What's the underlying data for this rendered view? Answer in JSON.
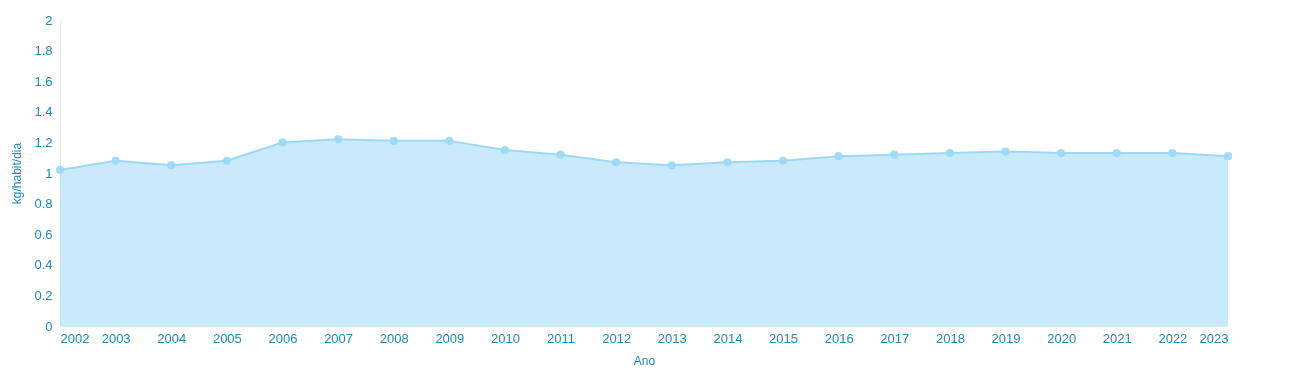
{
  "chart_data": {
    "type": "area",
    "xlabel": "Ano",
    "ylabel": "kg/habit/dia",
    "x": [
      2002,
      2003,
      2004,
      2005,
      2006,
      2007,
      2008,
      2009,
      2010,
      2011,
      2012,
      2013,
      2014,
      2015,
      2016,
      2017,
      2018,
      2019,
      2020,
      2021,
      2022,
      2023
    ],
    "series": [
      {
        "color": "#9dd8f6",
        "values": [
          1.02,
          1.08,
          1.05,
          1.08,
          1.2,
          1.22,
          1.21,
          1.21,
          1.15,
          1.12,
          1.07,
          1.05,
          1.07,
          1.08,
          1.11,
          1.12,
          1.13,
          1.14,
          1.13,
          1.13,
          1.13,
          1.11
        ]
      }
    ],
    "xlim": [
      2002,
      2023
    ],
    "xticks": [
      2002,
      2003,
      2004,
      2005,
      2006,
      2007,
      2008,
      2009,
      2010,
      2011,
      2012,
      2013,
      2014,
      2015,
      2016,
      2017,
      2018,
      2019,
      2020,
      2021,
      2022,
      2023
    ],
    "ylim": [
      0,
      2
    ],
    "yticks": [
      0,
      0.2,
      0.4,
      0.6,
      0.8,
      1,
      1.2,
      1.4,
      1.6,
      1.8,
      2
    ],
    "grid": false,
    "marker": "circle"
  }
}
